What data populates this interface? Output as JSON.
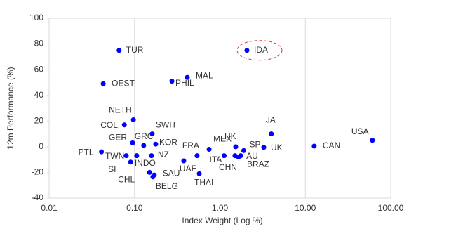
{
  "chart_data": {
    "type": "scatter",
    "x_label": "Index Weight (Log %)",
    "y_label": "12m Performance (%)",
    "log_x": true,
    "grid": "x",
    "color": "#0000ff",
    "labels": [
      "TUR",
      "IDA",
      "OEST",
      "MAL",
      "PHIL",
      "NETH",
      "COL",
      "GER",
      "GRC",
      "SWIT",
      "KOR",
      "PTL",
      "TWN",
      "INDO",
      "NZ",
      "SI",
      "CHL",
      "SAU",
      "BELG",
      "UAE",
      "THAI",
      "FRA",
      "MEX",
      "HK",
      "ITA",
      "CHN",
      "AU",
      "SP",
      "BRAZ",
      "UK",
      "JA",
      "CAN",
      "USA"
    ],
    "x": [
      0.066,
      2.07,
      0.043,
      0.415,
      0.274,
      0.097,
      0.076,
      0.095,
      0.128,
      0.161,
      0.177,
      0.041,
      0.08,
      0.106,
      0.158,
      0.09,
      0.15,
      0.17,
      0.164,
      0.377,
      0.573,
      0.54,
      0.747,
      1.53,
      1.12,
      1.5,
      1.75,
      1.9,
      1.65,
      3.26,
      4.0,
      12.7,
      61
    ],
    "values": [
      75,
      75,
      49,
      54,
      51,
      21,
      17,
      3,
      1,
      10,
      2,
      -4,
      -7,
      -7,
      -7,
      -12,
      -20,
      -22,
      -23.5,
      -11,
      -21,
      -7,
      -2,
      0,
      -7,
      -7,
      -7,
      -3,
      -8,
      -0.5,
      10,
      0.5,
      5
    ],
    "xlim": [
      0.01,
      100
    ],
    "xticks": [
      {
        "value": 0.01,
        "label": "0.01"
      },
      {
        "value": 0.1,
        "label": "0.10"
      },
      {
        "value": 1,
        "label": "1.00"
      },
      {
        "value": 10,
        "label": "10.00"
      },
      {
        "value": 100,
        "label": "100.00"
      }
    ],
    "ylim": [
      -40,
      100
    ],
    "yticks": [
      -40,
      -20,
      0,
      20,
      40,
      60,
      80,
      100
    ]
  }
}
